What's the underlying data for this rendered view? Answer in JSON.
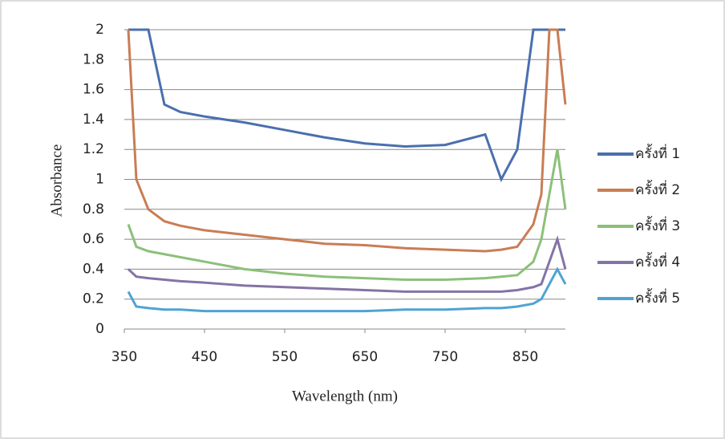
{
  "chart_data": {
    "type": "line",
    "x_label": "Wavelength (nm)",
    "y_label": "Absorbance",
    "x": [
      355,
      365,
      380,
      400,
      420,
      450,
      500,
      550,
      600,
      650,
      700,
      750,
      800,
      820,
      840,
      860,
      870,
      880,
      890,
      900
    ],
    "series": [
      {
        "name": "ครั้งที่ 1",
        "color": "#4a6fae",
        "values": [
          2,
          2,
          2,
          1.5,
          1.45,
          1.42,
          1.38,
          1.33,
          1.28,
          1.24,
          1.22,
          1.23,
          1.3,
          1.0,
          1.2,
          2,
          2,
          2,
          2,
          2
        ]
      },
      {
        "name": "ครั้งที่ 2",
        "color": "#c97d55",
        "values": [
          2,
          1.0,
          0.8,
          0.72,
          0.69,
          0.66,
          0.63,
          0.6,
          0.57,
          0.56,
          0.54,
          0.53,
          0.52,
          0.53,
          0.55,
          0.7,
          0.9,
          2,
          2,
          1.5
        ]
      },
      {
        "name": "ครั้งที่ 3",
        "color": "#8cc07a",
        "values": [
          0.7,
          0.55,
          0.52,
          0.5,
          0.48,
          0.45,
          0.4,
          0.37,
          0.35,
          0.34,
          0.33,
          0.33,
          0.34,
          0.35,
          0.36,
          0.45,
          0.6,
          0.9,
          1.2,
          0.8
        ]
      },
      {
        "name": "ครั้งที่ 4",
        "color": "#8473a6",
        "values": [
          0.4,
          0.35,
          0.34,
          0.33,
          0.32,
          0.31,
          0.29,
          0.28,
          0.27,
          0.26,
          0.25,
          0.25,
          0.25,
          0.25,
          0.26,
          0.28,
          0.3,
          0.45,
          0.6,
          0.4
        ]
      },
      {
        "name": "ครั้งที่ 5",
        "color": "#4fa3d4",
        "values": [
          0.25,
          0.15,
          0.14,
          0.13,
          0.13,
          0.12,
          0.12,
          0.12,
          0.12,
          0.12,
          0.13,
          0.13,
          0.14,
          0.14,
          0.15,
          0.17,
          0.2,
          0.3,
          0.4,
          0.3
        ]
      }
    ],
    "xlim": [
      350,
      900
    ],
    "xticks": [
      350,
      450,
      550,
      650,
      750,
      850
    ],
    "ylim": [
      0,
      2
    ],
    "yticks": [
      0,
      0.2,
      0.4,
      0.6,
      0.8,
      1,
      1.2,
      1.4,
      1.6,
      1.8,
      2
    ],
    "grid": true,
    "legend": "right"
  }
}
